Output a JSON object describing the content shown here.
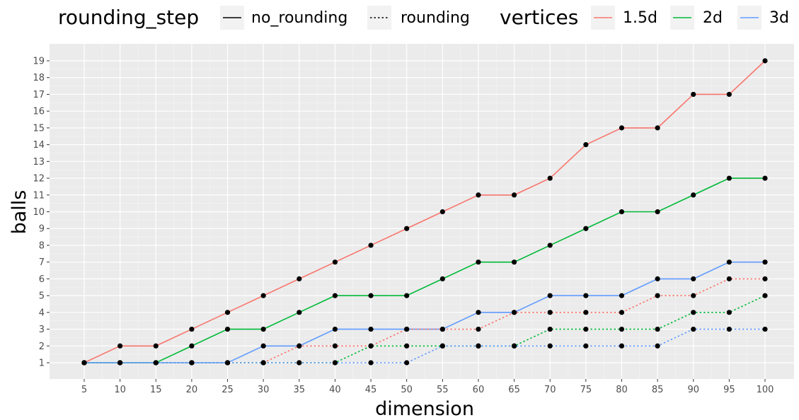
{
  "legend": {
    "linetype_title": "rounding_step",
    "linetype_items": [
      {
        "label": "no_rounding",
        "dash": "solid"
      },
      {
        "label": "rounding",
        "dash": "dotted"
      }
    ],
    "color_title": "vertices",
    "color_items": [
      {
        "label": "1.5d",
        "color": "#F8766D"
      },
      {
        "label": "2d",
        "color": "#00BA38"
      },
      {
        "label": "3d",
        "color": "#619CFF"
      }
    ]
  },
  "chart_data": {
    "type": "line",
    "xlabel": "dimension",
    "ylabel": "balls",
    "x": [
      5,
      10,
      15,
      20,
      25,
      30,
      35,
      40,
      45,
      50,
      55,
      60,
      65,
      70,
      75,
      80,
      85,
      90,
      95,
      100
    ],
    "xlim": [
      5,
      100
    ],
    "ylim": [
      1,
      19
    ],
    "xticks": [
      5,
      10,
      15,
      20,
      25,
      30,
      35,
      40,
      45,
      50,
      55,
      60,
      65,
      70,
      75,
      80,
      85,
      90,
      95,
      100
    ],
    "yticks": [
      1,
      2,
      3,
      4,
      5,
      6,
      7,
      8,
      9,
      10,
      11,
      12,
      13,
      14,
      15,
      16,
      17,
      18,
      19
    ],
    "grid": true,
    "legend_position": "top",
    "point_color": "#000000",
    "series": [
      {
        "vertices": "1.5d",
        "rounding_step": "no_rounding",
        "values": [
          1,
          2,
          2,
          3,
          4,
          5,
          6,
          7,
          8,
          9,
          10,
          11,
          11,
          12,
          14,
          15,
          15,
          17,
          17,
          19
        ]
      },
      {
        "vertices": "2d",
        "rounding_step": "no_rounding",
        "values": [
          1,
          1,
          1,
          2,
          3,
          3,
          4,
          5,
          5,
          5,
          6,
          7,
          7,
          8,
          9,
          10,
          10,
          11,
          12,
          12
        ]
      },
      {
        "vertices": "3d",
        "rounding_step": "no_rounding",
        "values": [
          1,
          1,
          1,
          1,
          1,
          2,
          2,
          3,
          3,
          3,
          3,
          4,
          4,
          5,
          5,
          5,
          6,
          6,
          7,
          7
        ]
      },
      {
        "vertices": "1.5d",
        "rounding_step": "rounding",
        "values": [
          1,
          1,
          1,
          1,
          1,
          1,
          2,
          2,
          2,
          3,
          3,
          3,
          4,
          4,
          4,
          4,
          5,
          5,
          6,
          6
        ]
      },
      {
        "vertices": "2d",
        "rounding_step": "rounding",
        "values": [
          1,
          1,
          1,
          1,
          1,
          1,
          1,
          1,
          2,
          2,
          2,
          2,
          2,
          3,
          3,
          3,
          3,
          4,
          4,
          5
        ]
      },
      {
        "vertices": "3d",
        "rounding_step": "rounding",
        "values": [
          1,
          1,
          1,
          1,
          1,
          1,
          1,
          1,
          1,
          1,
          2,
          2,
          2,
          2,
          2,
          2,
          2,
          3,
          3,
          3
        ]
      }
    ]
  }
}
